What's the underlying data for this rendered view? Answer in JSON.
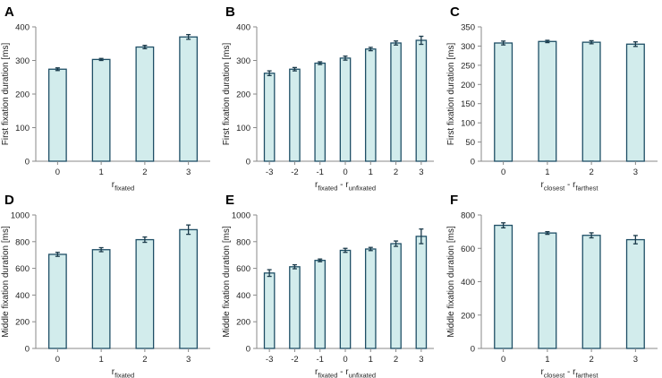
{
  "chart_data": [
    {
      "panel": "A",
      "type": "bar",
      "categories": [
        "0",
        "1",
        "2",
        "3"
      ],
      "values": [
        274,
        303,
        340,
        370
      ],
      "errors": [
        4,
        3,
        5,
        7
      ],
      "ylabel": "First fixation duration [ms]",
      "xlabel": {
        "parts": [
          {
            "t": "r",
            "sub": false
          },
          {
            "t": "fixated",
            "sub": true
          }
        ]
      },
      "ylim": [
        0,
        400
      ],
      "yticks": [
        0,
        100,
        200,
        300,
        400
      ]
    },
    {
      "panel": "B",
      "type": "bar",
      "categories": [
        "-3",
        "-2",
        "-1",
        "0",
        "1",
        "2",
        "3"
      ],
      "values": [
        262,
        274,
        292,
        307,
        334,
        352,
        360
      ],
      "errors": [
        7,
        5,
        4,
        6,
        5,
        6,
        12
      ],
      "ylabel": "First fixation duration [ms]",
      "xlabel": {
        "parts": [
          {
            "t": "r",
            "sub": false
          },
          {
            "t": "fixated",
            "sub": true
          },
          {
            "t": " - r",
            "sub": false
          },
          {
            "t": "unfixated",
            "sub": true
          }
        ]
      },
      "ylim": [
        0,
        400
      ],
      "yticks": [
        0,
        100,
        200,
        300,
        400
      ]
    },
    {
      "panel": "C",
      "type": "bar",
      "categories": [
        "0",
        "1",
        "2",
        "3"
      ],
      "values": [
        308,
        312,
        310,
        305
      ],
      "errors": [
        5,
        3,
        4,
        6
      ],
      "ylabel": "First fixation duration [ms]",
      "xlabel": {
        "parts": [
          {
            "t": "r",
            "sub": false
          },
          {
            "t": "closest",
            "sub": true
          },
          {
            "t": " - r",
            "sub": false
          },
          {
            "t": "farthest",
            "sub": true
          }
        ]
      },
      "ylim": [
        0,
        350
      ],
      "yticks": [
        0,
        50,
        100,
        150,
        200,
        250,
        300,
        350
      ]
    },
    {
      "panel": "D",
      "type": "bar",
      "categories": [
        "0",
        "1",
        "2",
        "3"
      ],
      "values": [
        705,
        740,
        815,
        890
      ],
      "errors": [
        15,
        15,
        20,
        35
      ],
      "ylabel": "Middle fixation duration [ms]",
      "xlabel": {
        "parts": [
          {
            "t": "r",
            "sub": false
          },
          {
            "t": "fixated",
            "sub": true
          }
        ]
      },
      "ylim": [
        0,
        1000
      ],
      "yticks": [
        0,
        200,
        400,
        600,
        800,
        1000
      ]
    },
    {
      "panel": "E",
      "type": "bar",
      "categories": [
        "-3",
        "-2",
        "-1",
        "0",
        "1",
        "2",
        "3"
      ],
      "values": [
        565,
        612,
        660,
        735,
        745,
        785,
        840
      ],
      "errors": [
        25,
        15,
        10,
        15,
        12,
        20,
        55
      ],
      "ylabel": "Middle fixation duration [ms]",
      "xlabel": {
        "parts": [
          {
            "t": "r",
            "sub": false
          },
          {
            "t": "fixated",
            "sub": true
          },
          {
            "t": " - r",
            "sub": false
          },
          {
            "t": "unfixated",
            "sub": true
          }
        ]
      },
      "ylim": [
        0,
        1000
      ],
      "yticks": [
        0,
        200,
        400,
        600,
        800,
        1000
      ]
    },
    {
      "panel": "F",
      "type": "bar",
      "categories": [
        "0",
        "1",
        "2",
        "3"
      ],
      "values": [
        738,
        692,
        678,
        652
      ],
      "errors": [
        15,
        8,
        15,
        25
      ],
      "ylabel": "Middle fixation duration [ms]",
      "xlabel": {
        "parts": [
          {
            "t": "r",
            "sub": false
          },
          {
            "t": "closest",
            "sub": true
          },
          {
            "t": " - r",
            "sub": false
          },
          {
            "t": "farthest",
            "sub": true
          }
        ]
      },
      "ylim": [
        0,
        800
      ],
      "yticks": [
        0,
        200,
        400,
        600,
        800
      ]
    }
  ],
  "colors": {
    "bar_fill": "#d2ecec",
    "bar_edge": "#1f4f66",
    "error": "#1a3a4a",
    "axis": "#8a8a8a"
  }
}
